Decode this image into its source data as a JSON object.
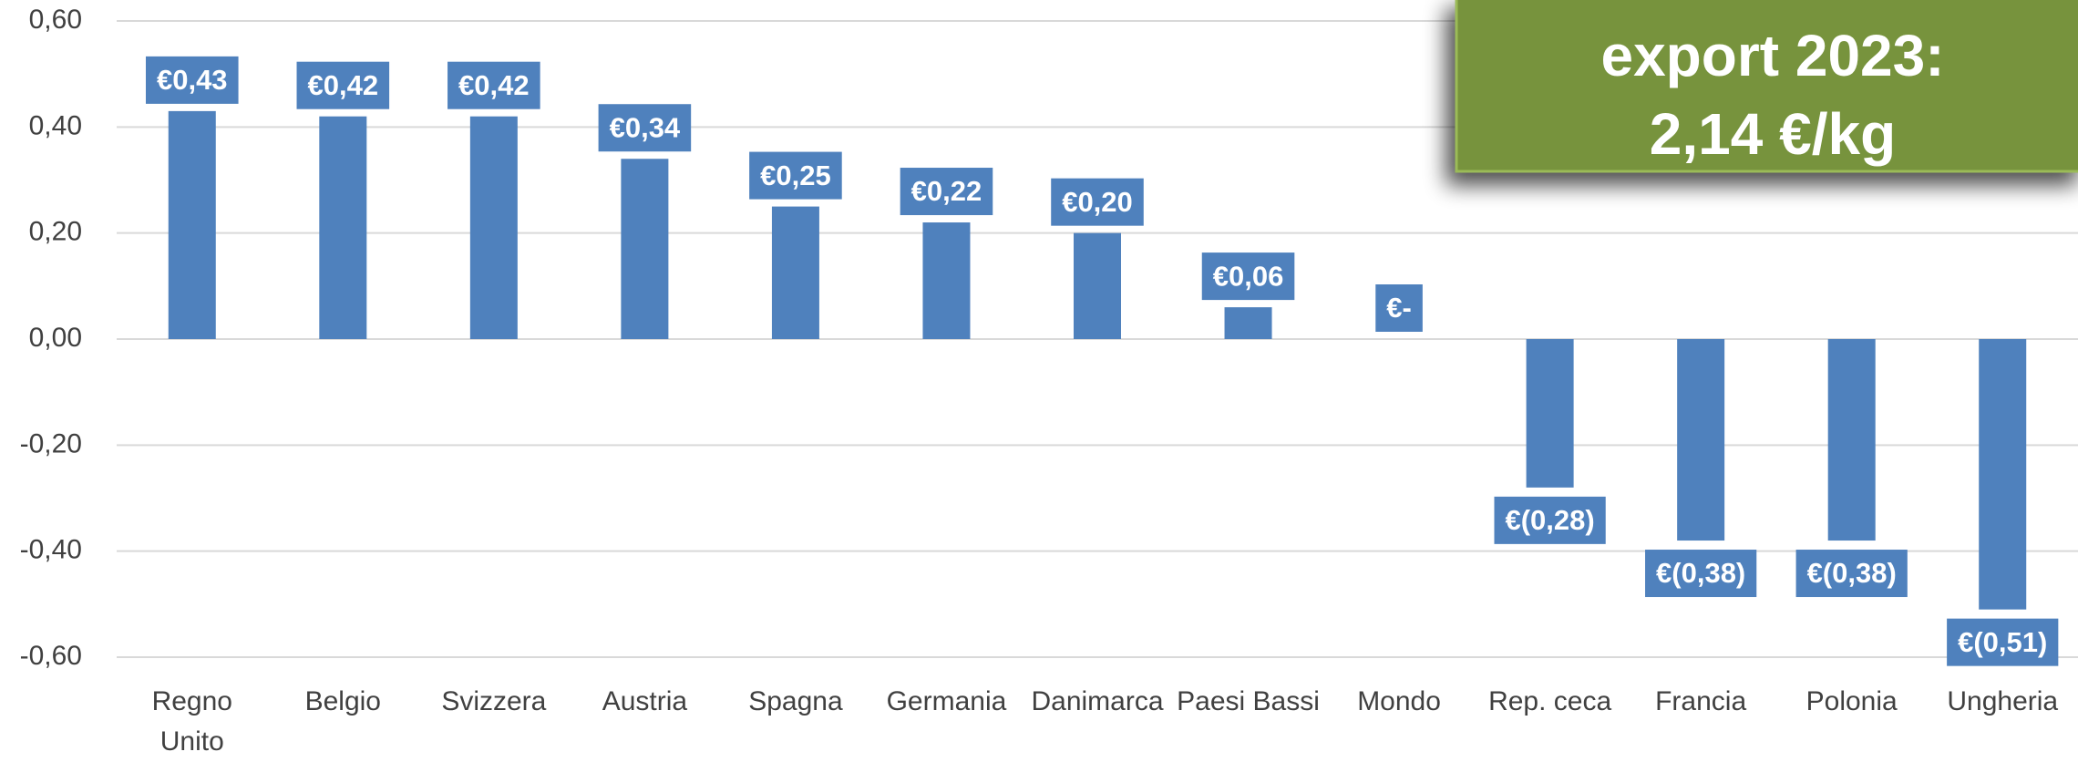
{
  "chart_data": {
    "type": "bar",
    "categories": [
      "Regno\nUnito",
      "Belgio",
      "Svizzera",
      "Austria",
      "Spagna",
      "Germania",
      "Danimarca",
      "Paesi Bassi",
      "Mondo",
      "Rep. ceca",
      "Francia",
      "Polonia",
      "Ungheria"
    ],
    "values": [
      0.43,
      0.42,
      0.42,
      0.34,
      0.25,
      0.22,
      0.2,
      0.06,
      0,
      -0.28,
      -0.38,
      -0.38,
      -0.51
    ],
    "value_labels": [
      "€0,43",
      "€0,42",
      "€0,42",
      "€0,34",
      "€0,25",
      "€0,22",
      "€0,20",
      "€0,06",
      "€-",
      "€(0,28)",
      "€(0,38)",
      "€(0,38)",
      "€(0,51)"
    ],
    "color": "#4f81bd",
    "ylim": [
      -0.6,
      0.6
    ],
    "yticks": [
      {
        "value": 0.6,
        "label": "0,60"
      },
      {
        "value": 0.4,
        "label": "0,40"
      },
      {
        "value": 0.2,
        "label": "0,20"
      },
      {
        "value": 0,
        "label": "0,00"
      },
      {
        "value": -0.2,
        "label": "-0,20"
      },
      {
        "value": -0.4,
        "label": "-0,40"
      },
      {
        "value": -0.6,
        "label": "-0,60"
      }
    ],
    "grid": true,
    "annotation": [
      "export 2023:",
      "2,14 €/kg"
    ]
  }
}
